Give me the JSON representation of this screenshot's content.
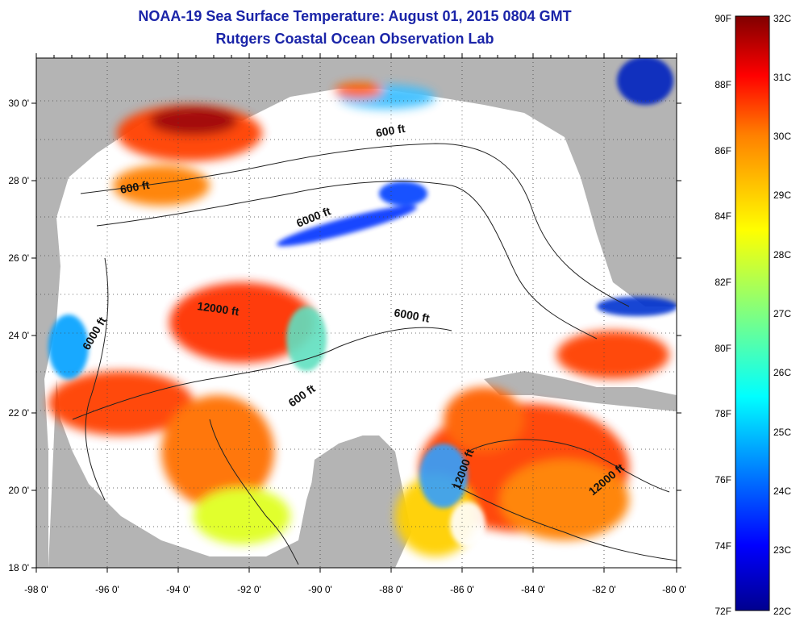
{
  "title": {
    "line1": "NOAA-19 Sea Surface Temperature:  August 01, 2015 0804 GMT",
    "line2": "Rutgers Coastal Ocean Observation Lab"
  },
  "map": {
    "lon_range": [
      -98,
      -80
    ],
    "lat_range": [
      18,
      31
    ],
    "x_ticks": [
      "-98 0'",
      "-96 0'",
      "-94 0'",
      "-92 0'",
      "-90 0'",
      "-88 0'",
      "-86 0'",
      "-84 0'",
      "-82 0'",
      "-80 0'"
    ],
    "y_ticks": [
      "18 0'",
      "20 0'",
      "22 0'",
      "24 0'",
      "26 0'",
      "28 0'",
      "30 0'"
    ],
    "land_color": "#b4b4b4",
    "nodata_color": "#ffffff",
    "contour_labels": [
      "600 ft",
      "600 ft",
      "6000 ft",
      "12000 ft",
      "6000 ft",
      "6000 ft",
      "600 ft",
      "12000 ft",
      "12000 ft"
    ]
  },
  "colorbar": {
    "f_labels": [
      "90F",
      "88F",
      "86F",
      "84F",
      "82F",
      "80F",
      "78F",
      "76F",
      "74F",
      "72F"
    ],
    "c_labels": [
      "32C",
      "31C",
      "30C",
      "29C",
      "28C",
      "27C",
      "26C",
      "25C",
      "24C",
      "23C",
      "22C"
    ],
    "colormap": [
      "#00008f",
      "#0000ff",
      "#0080ff",
      "#00ffff",
      "#80ff80",
      "#ffff00",
      "#ff8000",
      "#ff0000",
      "#800000"
    ]
  }
}
